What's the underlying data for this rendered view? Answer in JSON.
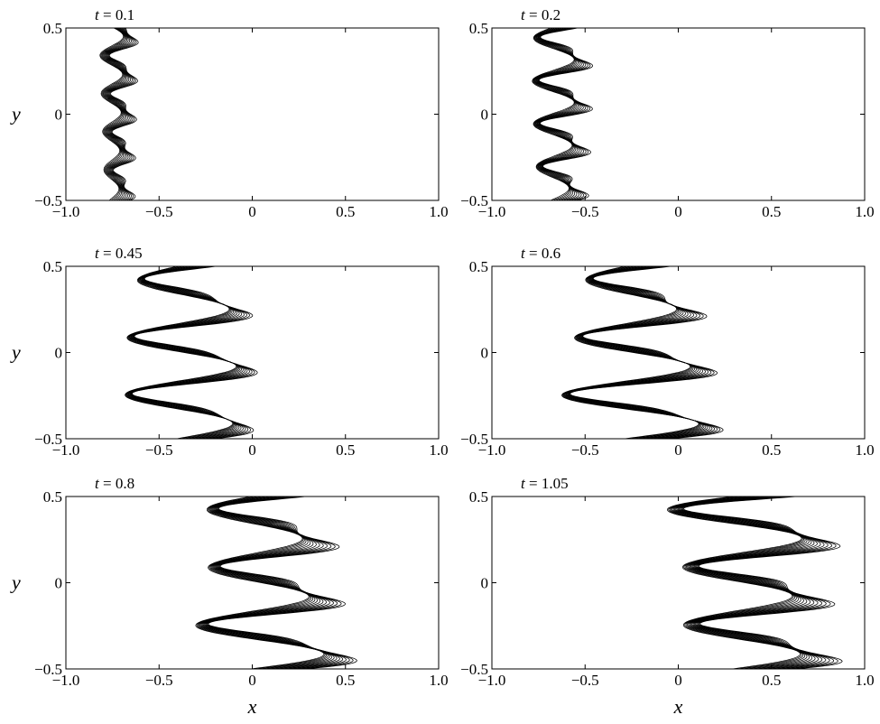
{
  "chart_data": [
    {
      "type": "contour",
      "title_var": "t",
      "title_value": "0.1",
      "xlim": [
        -1.0,
        1.0
      ],
      "ylim": [
        -0.5,
        0.5
      ],
      "ylabel": "y",
      "xlabel": "",
      "xticks": [
        "−1.0",
        "−0.5",
        "0",
        "0.5",
        "1.0"
      ],
      "yticks": [
        "0.5",
        "0",
        "−0.5"
      ],
      "front": {
        "center_x": -0.72,
        "amplitude": 0.05,
        "modes": 4.5,
        "band_width": 0.07,
        "bulge": 0.03,
        "levels": 12
      }
    },
    {
      "type": "contour",
      "title_var": "t",
      "title_value": "0.2",
      "xlim": [
        -1.0,
        1.0
      ],
      "ylim": [
        -0.5,
        0.5
      ],
      "ylabel": "",
      "xlabel": "",
      "xticks": [
        "−1.0",
        "−0.5",
        "0",
        "0.5",
        "1.0"
      ],
      "yticks": [
        "0.5",
        "0",
        "−0.5"
      ],
      "front": {
        "center_x": -0.63,
        "amplitude": 0.09,
        "modes": 4,
        "band_width": 0.08,
        "bulge": 0.06,
        "levels": 12
      }
    },
    {
      "type": "contour",
      "title_var": "t",
      "title_value": "0.45",
      "xlim": [
        -1.0,
        1.0
      ],
      "ylim": [
        -0.5,
        0.5
      ],
      "ylabel": "y",
      "xlabel": "",
      "xticks": [
        "−1.0",
        "−0.5",
        "0",
        "0.5",
        "1.0"
      ],
      "yticks": [
        "0.5",
        "0",
        "−0.5"
      ],
      "front": {
        "center_x": -0.33,
        "amplitude": 0.24,
        "modes": 3,
        "band_width": 0.11,
        "bulge": 0.1,
        "levels": 13
      }
    },
    {
      "type": "contour",
      "title_var": "t",
      "title_value": "0.6",
      "xlim": [
        -1.0,
        1.0
      ],
      "ylim": [
        -0.5,
        0.5
      ],
      "ylabel": "",
      "xlabel": "",
      "xticks": [
        "−1.0",
        "−0.5",
        "0",
        "0.5",
        "1.0"
      ],
      "yticks": [
        "0.5",
        "0",
        "−0.5"
      ],
      "front": {
        "center_x": -0.2,
        "amplitude": 0.3,
        "modes": 3,
        "band_width": 0.13,
        "bulge": 0.12,
        "levels": 14
      }
    },
    {
      "type": "contour",
      "title_var": "t",
      "title_value": "0.8",
      "xlim": [
        -1.0,
        1.0
      ],
      "ylim": [
        -0.5,
        0.5
      ],
      "ylabel": "y",
      "xlabel": "x",
      "xticks": [
        "−1.0",
        "−0.5",
        "0",
        "0.5",
        "1.0"
      ],
      "yticks": [
        "0.5",
        "0",
        "−0.5"
      ],
      "front": {
        "center_x": 0.1,
        "amplitude": 0.33,
        "modes": 3,
        "band_width": 0.16,
        "bulge": 0.13,
        "levels": 14
      }
    },
    {
      "type": "contour",
      "title_var": "t",
      "title_value": "1.05",
      "xlim": [
        -1.0,
        1.0
      ],
      "ylim": [
        -0.5,
        0.5
      ],
      "ylabel": "",
      "xlabel": "x",
      "xticks": [
        "−1.0",
        "−0.5",
        "0",
        "0.5",
        "1.0"
      ],
      "yticks": [
        "0.5",
        "0",
        "−0.5"
      ],
      "front": {
        "center_x": 0.42,
        "amplitude": 0.38,
        "modes": 3,
        "band_width": 0.19,
        "bulge": 0.14,
        "levels": 15
      }
    }
  ]
}
